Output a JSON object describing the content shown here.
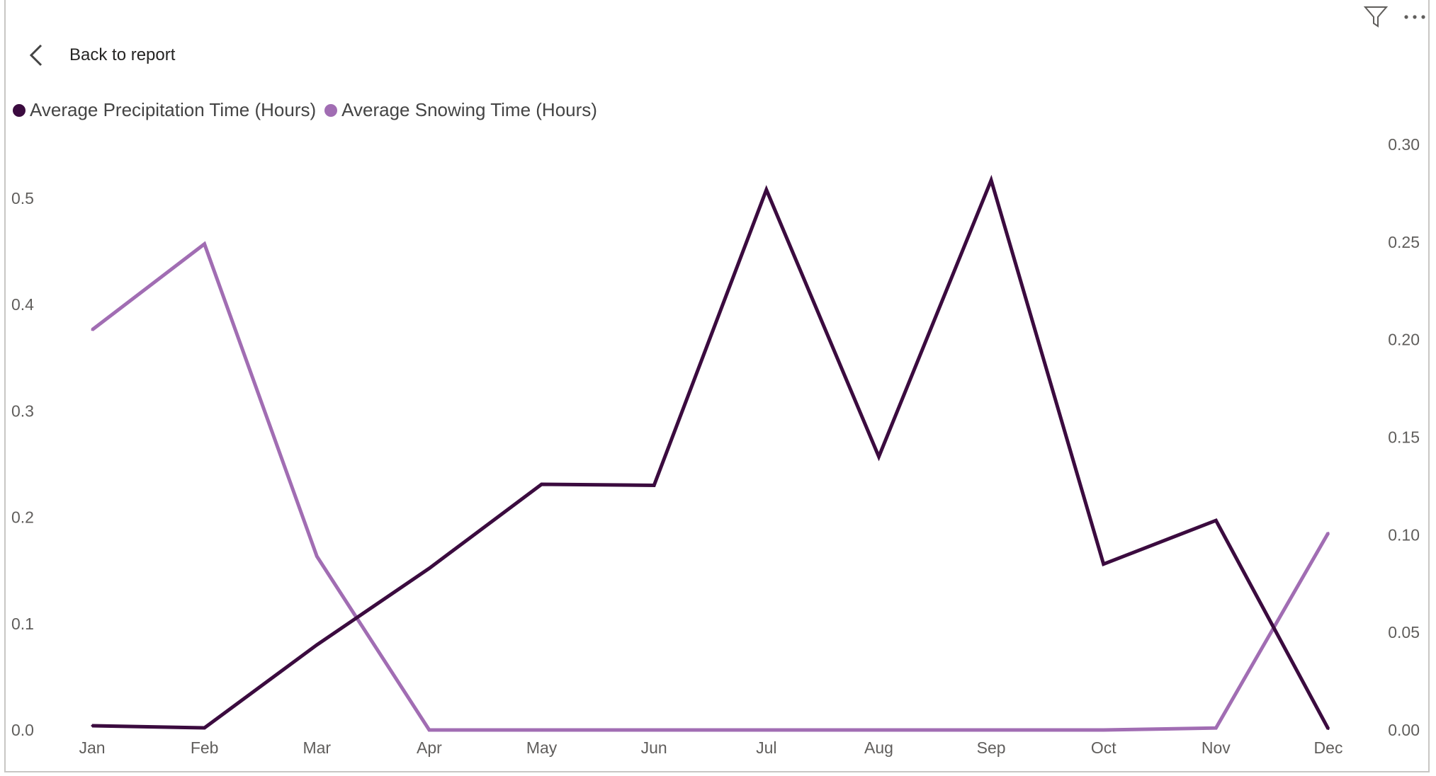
{
  "header": {
    "back_label": "Back to report",
    "back_icon": "chevron-left-icon",
    "filter_icon": "filter-icon",
    "more_icon": "more-options-icon"
  },
  "colors": {
    "precipitation": "#3b0b3f",
    "snowing": "#a16db3",
    "axis_text": "#605e5c"
  },
  "chart_data": {
    "type": "line",
    "title": "",
    "legend_position": "top-left",
    "grid": false,
    "categories": [
      "Jan",
      "Feb",
      "Mar",
      "Apr",
      "May",
      "Jun",
      "Jul",
      "Aug",
      "Sep",
      "Oct",
      "Nov",
      "Dec"
    ],
    "series": [
      {
        "name": "Average Precipitation Time (Hours)",
        "axis": "left",
        "values": [
          0.004,
          0.002,
          0.08,
          0.152,
          0.231,
          0.23,
          0.508,
          0.257,
          0.517,
          0.156,
          0.197,
          0.001
        ]
      },
      {
        "name": "Average Snowing Time (Hours)",
        "axis": "right",
        "values": [
          0.205,
          0.249,
          0.089,
          0.0,
          0.0,
          0.0,
          0.0,
          0.0,
          0.0,
          0.0,
          0.001,
          0.101
        ]
      }
    ],
    "y_left": {
      "ticks": [
        "0.0",
        "0.1",
        "0.2",
        "0.3",
        "0.4",
        "0.5"
      ],
      "range": [
        0,
        0.55
      ]
    },
    "y_right": {
      "ticks": [
        "0.00",
        "0.05",
        "0.10",
        "0.15",
        "0.20",
        "0.25",
        "0.30"
      ],
      "range": [
        0,
        0.3
      ]
    }
  }
}
